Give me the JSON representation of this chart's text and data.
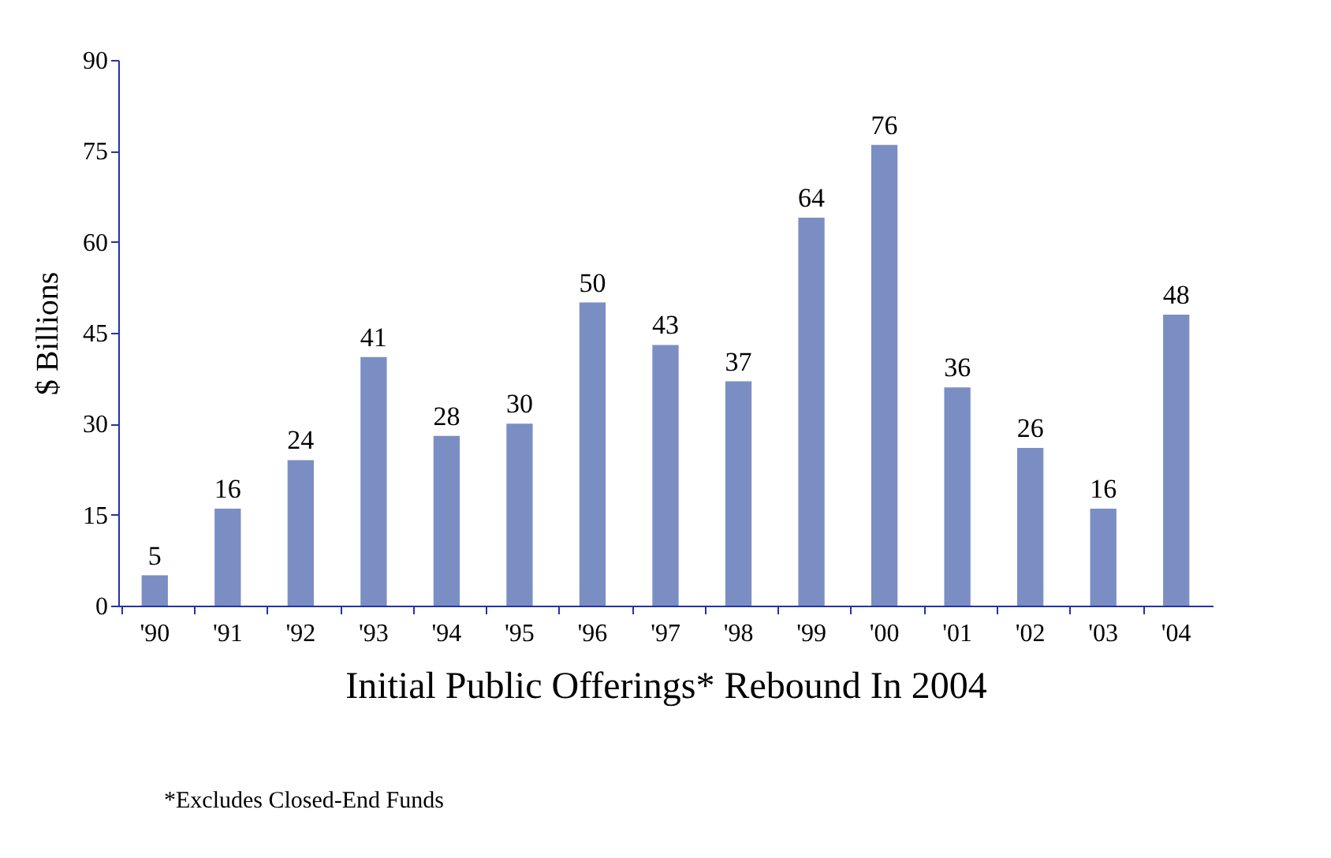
{
  "chart_data": {
    "type": "bar",
    "xlabel": "Initial Public Offerings* Rebound In 2004",
    "ylabel": "$ Billions",
    "categories": [
      "'90",
      "'91",
      "'92",
      "'93",
      "'94",
      "'95",
      "'96",
      "'97",
      "'98",
      "'99",
      "'00",
      "'01",
      "'02",
      "'03",
      "'04"
    ],
    "values": [
      5,
      16,
      24,
      41,
      28,
      30,
      50,
      43,
      37,
      64,
      76,
      36,
      26,
      16,
      48
    ],
    "color": "#7b8ec4",
    "ylim": [
      0,
      90
    ],
    "yticks": [
      0,
      15,
      30,
      45,
      60,
      75,
      90
    ],
    "grid": false,
    "data_labels": true,
    "annotations": [
      "*Excludes Closed-End Funds"
    ]
  }
}
